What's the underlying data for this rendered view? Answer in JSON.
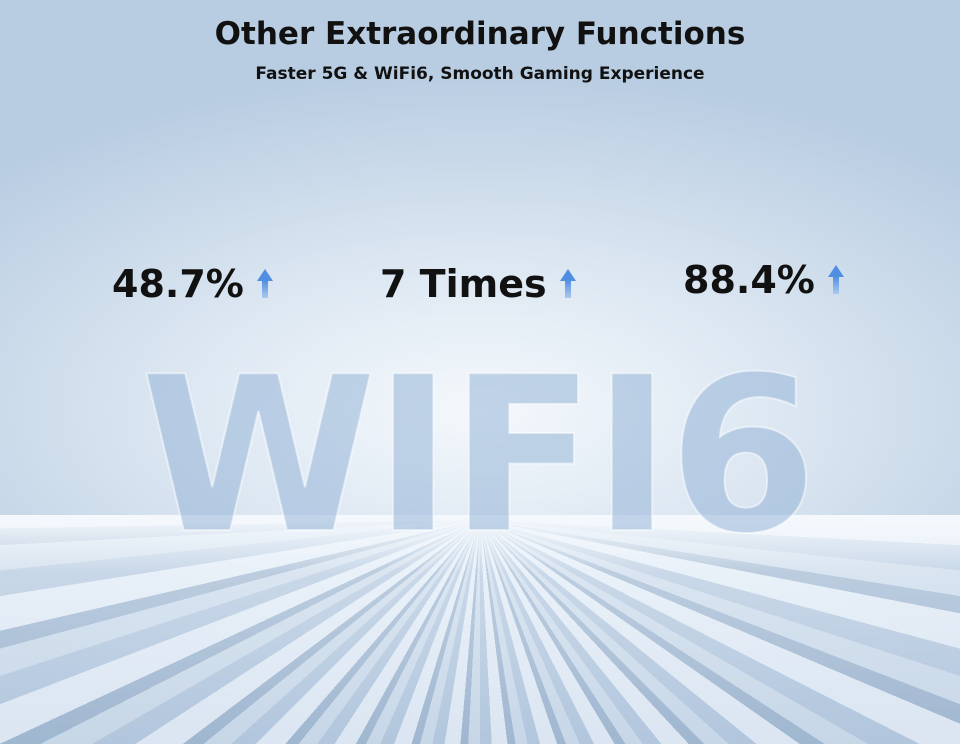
{
  "header": {
    "title": "Other Extraordinary Functions",
    "subtitle": "Faster 5G & WiFi6, Smooth Gaming Experience"
  },
  "stats": [
    {
      "value": "48.7%",
      "icon": "arrow-up-icon"
    },
    {
      "value": "7 Times",
      "icon": "arrow-up-icon"
    },
    {
      "value": "88.4%",
      "icon": "arrow-up-icon"
    }
  ],
  "hero_text": "WIFI6",
  "colors": {
    "arrow": "#4f8ee0"
  }
}
